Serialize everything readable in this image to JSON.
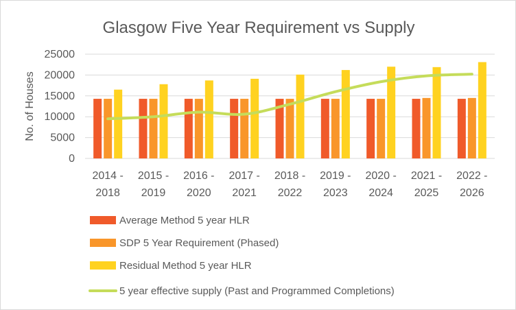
{
  "chart_data": {
    "type": "bar",
    "title": "Glasgow Five Year Requirement vs Supply",
    "xlabel": "",
    "ylabel": "No. of Houses",
    "ylim": [
      0,
      25000
    ],
    "yticks": [
      0,
      5000,
      10000,
      15000,
      20000,
      25000
    ],
    "grid": true,
    "legend_position": "bottom",
    "categories": [
      [
        "2014 -",
        "2018"
      ],
      [
        "2015 -",
        "2019"
      ],
      [
        "2016 -",
        "2020"
      ],
      [
        "2017 -",
        "2021"
      ],
      [
        "2018 -",
        "2022"
      ],
      [
        "2019 -",
        "2023"
      ],
      [
        "2020 -",
        "2024"
      ],
      [
        "2021 -",
        "2025"
      ],
      [
        "2022 -",
        "2026"
      ]
    ],
    "series": [
      {
        "name": "Average Method 5 year HLR",
        "kind": "bar",
        "color": "#f05a2a",
        "values": [
          14300,
          14300,
          14300,
          14300,
          14300,
          14300,
          14300,
          14300,
          14300
        ]
      },
      {
        "name": "SDP 5 Year Requirement (Phased)",
        "kind": "bar",
        "color": "#f9962a",
        "values": [
          14300,
          14300,
          14300,
          14300,
          14300,
          14300,
          14300,
          14500,
          14500
        ]
      },
      {
        "name": "Residual Method 5 year HLR",
        "kind": "bar",
        "color": "#ffd220",
        "values": [
          16500,
          17800,
          18700,
          19100,
          20100,
          21200,
          22000,
          21900,
          23100
        ]
      },
      {
        "name": "5 year effective supply (Past and Programmed Completions)",
        "kind": "line",
        "color": "#c5dc5a",
        "values": [
          9500,
          10000,
          11100,
          10600,
          13000,
          16000,
          18400,
          19800,
          20200
        ]
      }
    ]
  }
}
